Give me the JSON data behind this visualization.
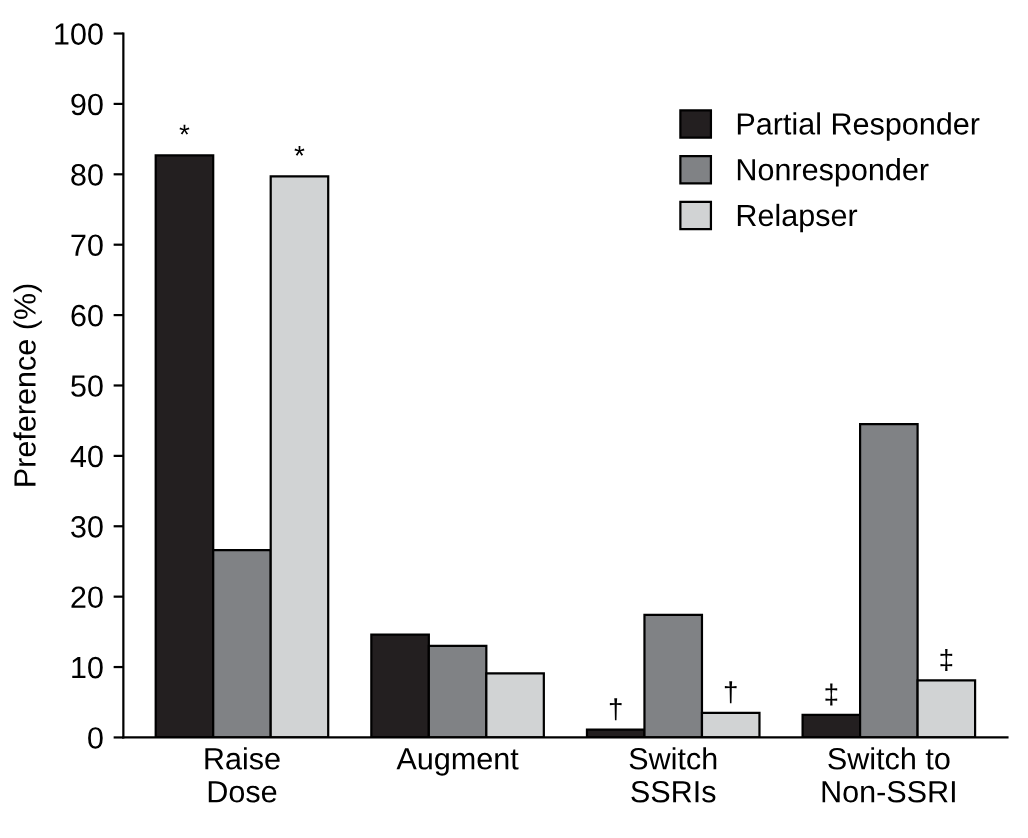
{
  "chart_data": {
    "type": "bar",
    "ylabel": "Preference (%)",
    "categories": [
      "Raise\nDose",
      "Augment",
      "Switch\nSSRIs",
      "Switch to\nNon-SSRI"
    ],
    "series": [
      {
        "name": "Partial Responder",
        "color": "#231f20",
        "values": [
          82.7,
          14.6,
          1.1,
          3.2
        ],
        "value_labels": [
          "*",
          null,
          "†",
          "‡"
        ]
      },
      {
        "name": "Nonresponder",
        "color": "#808285",
        "values": [
          26.6,
          13.0,
          17.4,
          44.5
        ]
      },
      {
        "name": "Relapser",
        "color": "#d1d3d4",
        "values": [
          79.7,
          9.1,
          3.5,
          8.1
        ],
        "value_labels": [
          "*",
          null,
          "†",
          "‡"
        ]
      }
    ],
    "ylim": [
      0,
      100
    ],
    "yticks": [
      0,
      10,
      20,
      30,
      40,
      50,
      60,
      70,
      80,
      90,
      100
    ],
    "grid": false,
    "legend": "top right"
  }
}
